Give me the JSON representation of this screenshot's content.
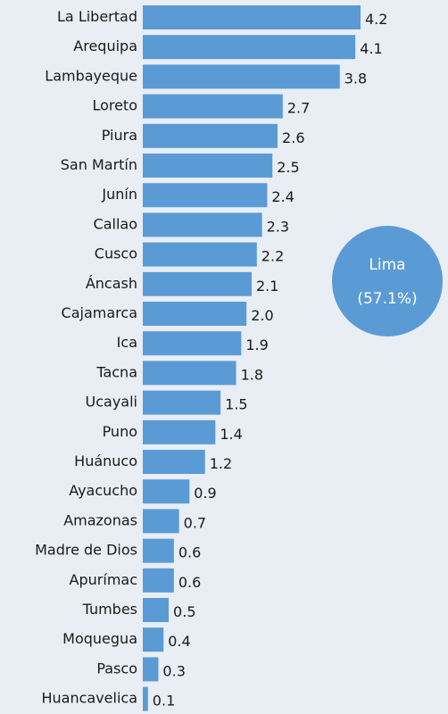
{
  "chart_data": {
    "type": "bar",
    "orientation": "horizontal",
    "categories": [
      "La Libertad",
      "Arequipa",
      "Lambayeque",
      "Loreto",
      "Piura",
      "San Martín",
      "Junín",
      "Callao",
      "Cusco",
      "Áncash",
      "Cajamarca",
      "Ica",
      "Tacna",
      "Ucayali",
      "Puno",
      "Huánuco",
      "Ayacucho",
      "Amazonas",
      "Madre de Dios",
      "Apurímac",
      "Tumbes",
      "Moquegua",
      "Pasco",
      "Huancavelica"
    ],
    "values": [
      4.2,
      4.1,
      3.8,
      2.7,
      2.6,
      2.5,
      2.4,
      2.3,
      2.2,
      2.1,
      2.0,
      1.9,
      1.8,
      1.5,
      1.4,
      1.2,
      0.9,
      0.7,
      0.6,
      0.6,
      0.5,
      0.4,
      0.3,
      0.1
    ],
    "value_labels": [
      "4.2",
      "4.1",
      "3.8",
      "2.7",
      "2.6",
      "2.5",
      "2.4",
      "2.3",
      "2.2",
      "2.1",
      "2.0",
      "1.9",
      "1.8",
      "1.5",
      "1.4",
      "1.2",
      "0.9",
      "0.7",
      "0.6",
      "0.6",
      "0.5",
      "0.4",
      "0.3",
      "0.1"
    ],
    "color": "#5b9bd5",
    "xlim": [
      0,
      4.2
    ],
    "annotations": [
      "Lima",
      "(57.1%)"
    ],
    "annotation_color": "#5b9bd5"
  }
}
